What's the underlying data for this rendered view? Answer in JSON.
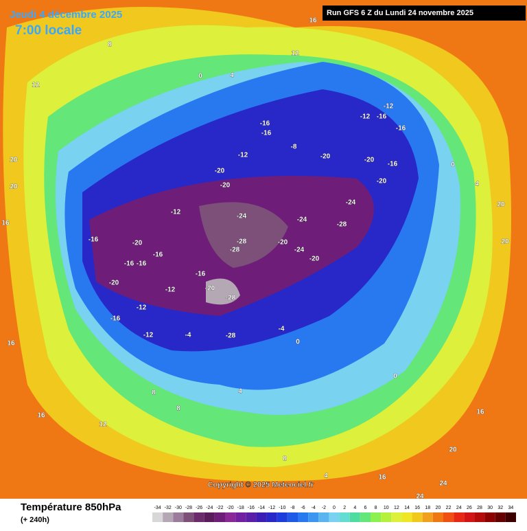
{
  "header": {
    "date": "Jeudi 4 décembre 2025",
    "time": "7:00 locale",
    "run": "Run GFS 6 Z du Lundi 24 novembre 2025",
    "copyright": "Copyright © 2025 Meteociel.fr"
  },
  "footer": {
    "title": "Température 850hPa",
    "lead": "(+ 240h)"
  },
  "colorbar": {
    "ticks": [
      -34,
      -32,
      -30,
      -28,
      -26,
      -24,
      -22,
      -20,
      -18,
      -16,
      -14,
      -12,
      -10,
      -8,
      -6,
      -4,
      -2,
      0,
      2,
      4,
      6,
      8,
      10,
      12,
      14,
      16,
      18,
      20,
      22,
      24,
      26,
      28,
      30,
      32,
      34
    ],
    "colors": [
      "#d8d8d8",
      "#b4a8b4",
      "#9c7c9c",
      "#7c5078",
      "#6a2c6a",
      "#5a1c5a",
      "#6e1e78",
      "#8a2896",
      "#7020a0",
      "#5a1ea8",
      "#3c1eb4",
      "#2828c8",
      "#1e3cdc",
      "#1e5ae6",
      "#2878f0",
      "#3c96f0",
      "#5ab4f0",
      "#78d2f0",
      "#64dcd2",
      "#50dca0",
      "#64e678",
      "#8cf050",
      "#b4f03c",
      "#dcf03c",
      "#f0e628",
      "#f0c81e",
      "#f0a01e",
      "#f07814",
      "#f05014",
      "#e62814",
      "#d21414",
      "#b40a0a",
      "#8c0000",
      "#640000",
      "#3c0000"
    ]
  },
  "map_labels": [
    -24,
    -24,
    -28,
    -24,
    -28,
    -28,
    -20,
    -24,
    -20,
    -20,
    -20,
    -16,
    -16,
    -16,
    -16,
    -20,
    -28,
    -16,
    -12,
    -12,
    -12,
    -16,
    -12,
    -4,
    -28,
    -4,
    0,
    0,
    -16,
    -16,
    -12,
    -8,
    -20,
    -20,
    -20,
    -16,
    -12,
    -16,
    -12,
    -16,
    -20,
    -20,
    0,
    4,
    8,
    12,
    20,
    20,
    16,
    16,
    16,
    12,
    12,
    16,
    20,
    20,
    20,
    24,
    24,
    16,
    8,
    4,
    4,
    8,
    8,
    4,
    0,
    16
  ]
}
